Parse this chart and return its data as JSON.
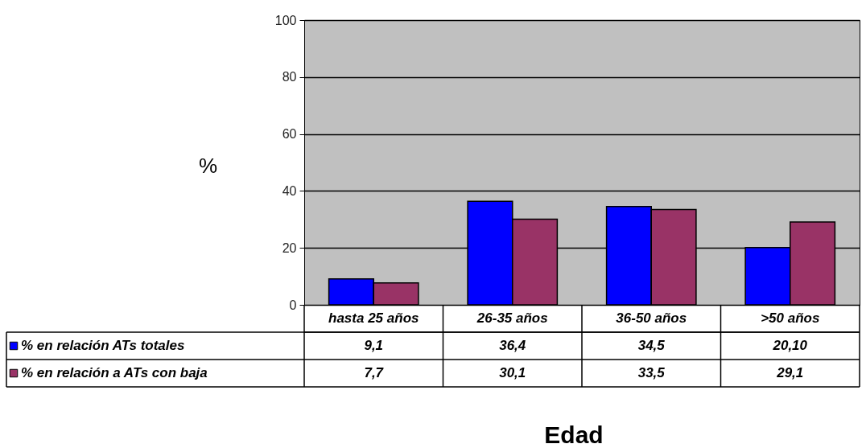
{
  "chart_data": {
    "type": "bar",
    "ylabel": "%",
    "xlabel": "Edad",
    "categories": [
      "hasta 25 años",
      "26-35 años",
      "36-50 años",
      ">50 años"
    ],
    "series": [
      {
        "name": "% en relación ATs totales",
        "color": "#0000ff",
        "values": [
          9.1,
          36.4,
          34.5,
          20.1
        ],
        "value_labels": [
          "9,1",
          "36,4",
          "34,5",
          "20,10"
        ]
      },
      {
        "name": "% en relación a ATs con baja",
        "color": "#993366",
        "values": [
          7.7,
          30.1,
          33.5,
          29.1
        ],
        "value_labels": [
          "7,7",
          "30,1",
          "33,5",
          "29,1"
        ]
      }
    ],
    "ylim": [
      0,
      100
    ],
    "yticks": [
      0,
      20,
      40,
      60,
      80,
      100
    ],
    "grid": "y",
    "legend": "bottom"
  }
}
